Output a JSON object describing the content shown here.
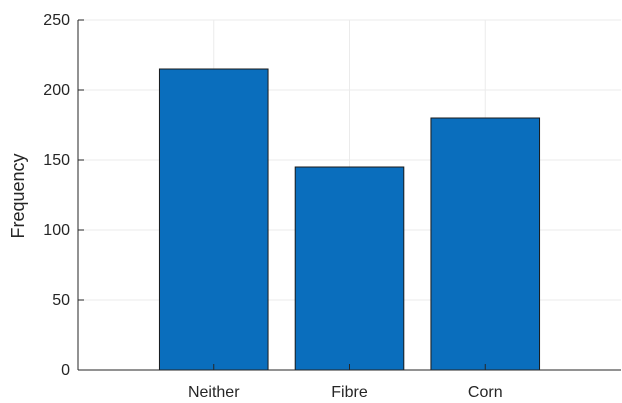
{
  "chart_data": {
    "type": "bar",
    "title": "",
    "xlabel": "",
    "ylabel": "Frequency",
    "categories": [
      "Neither",
      "Fibre",
      "Corn"
    ],
    "values": [
      215,
      145,
      180
    ],
    "ylim": [
      0,
      250
    ],
    "yticks": [
      0,
      50,
      100,
      150,
      200,
      250
    ],
    "ytick_labels": [
      "0",
      "50",
      "100",
      "150",
      "200",
      "250"
    ],
    "grid": true,
    "bar_color": "#0a6ebd"
  }
}
